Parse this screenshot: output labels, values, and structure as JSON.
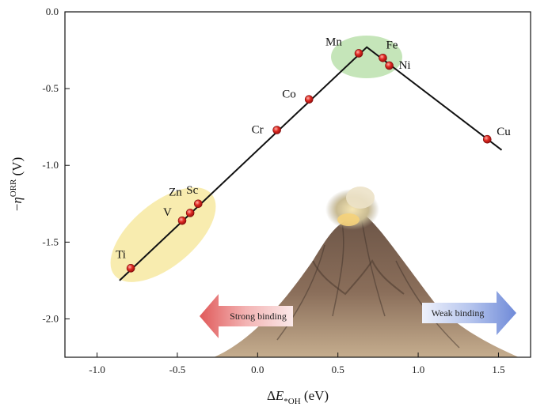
{
  "chart_data": {
    "type": "scatter",
    "xlabel": "ΔE*OH (eV)",
    "ylabel": "−ηORR (V)",
    "xlim": [
      -1.2,
      1.7
    ],
    "ylim": [
      -2.25,
      0.0
    ],
    "xticks": [
      -1.0,
      -0.5,
      0.0,
      0.5,
      1.0,
      1.5
    ],
    "yticks": [
      0.0,
      -0.5,
      -1.0,
      -1.5,
      -2.0
    ],
    "grid": false,
    "points": [
      {
        "name": "Ti",
        "x": -0.79,
        "y": -1.67
      },
      {
        "name": "V",
        "x": -0.47,
        "y": -1.36
      },
      {
        "name": "Zn",
        "x": -0.42,
        "y": -1.31
      },
      {
        "name": "Sc",
        "x": -0.37,
        "y": -1.25
      },
      {
        "name": "Cr",
        "x": 0.12,
        "y": -0.77
      },
      {
        "name": "Co",
        "x": 0.32,
        "y": -0.57
      },
      {
        "name": "Mn",
        "x": 0.63,
        "y": -0.27
      },
      {
        "name": "Fe",
        "x": 0.78,
        "y": -0.3
      },
      {
        "name": "Ni",
        "x": 0.82,
        "y": -0.35
      },
      {
        "name": "Cu",
        "x": 1.43,
        "y": -0.83
      }
    ],
    "volcano_line": [
      {
        "x": -0.86,
        "y": -1.75
      },
      {
        "x": 0.68,
        "y": -0.23
      },
      {
        "x": 1.52,
        "y": -0.9
      }
    ],
    "annotations": {
      "left_arrow": "Strong binding",
      "right_arrow": "Weak binding"
    },
    "colors": {
      "marker": "#d42020",
      "line": "#111111",
      "strong_region": "#f3dc6e",
      "optimal_region": "#9fd48a",
      "left_arrow": "#e07676",
      "right_arrow": "#7f97dc"
    }
  }
}
